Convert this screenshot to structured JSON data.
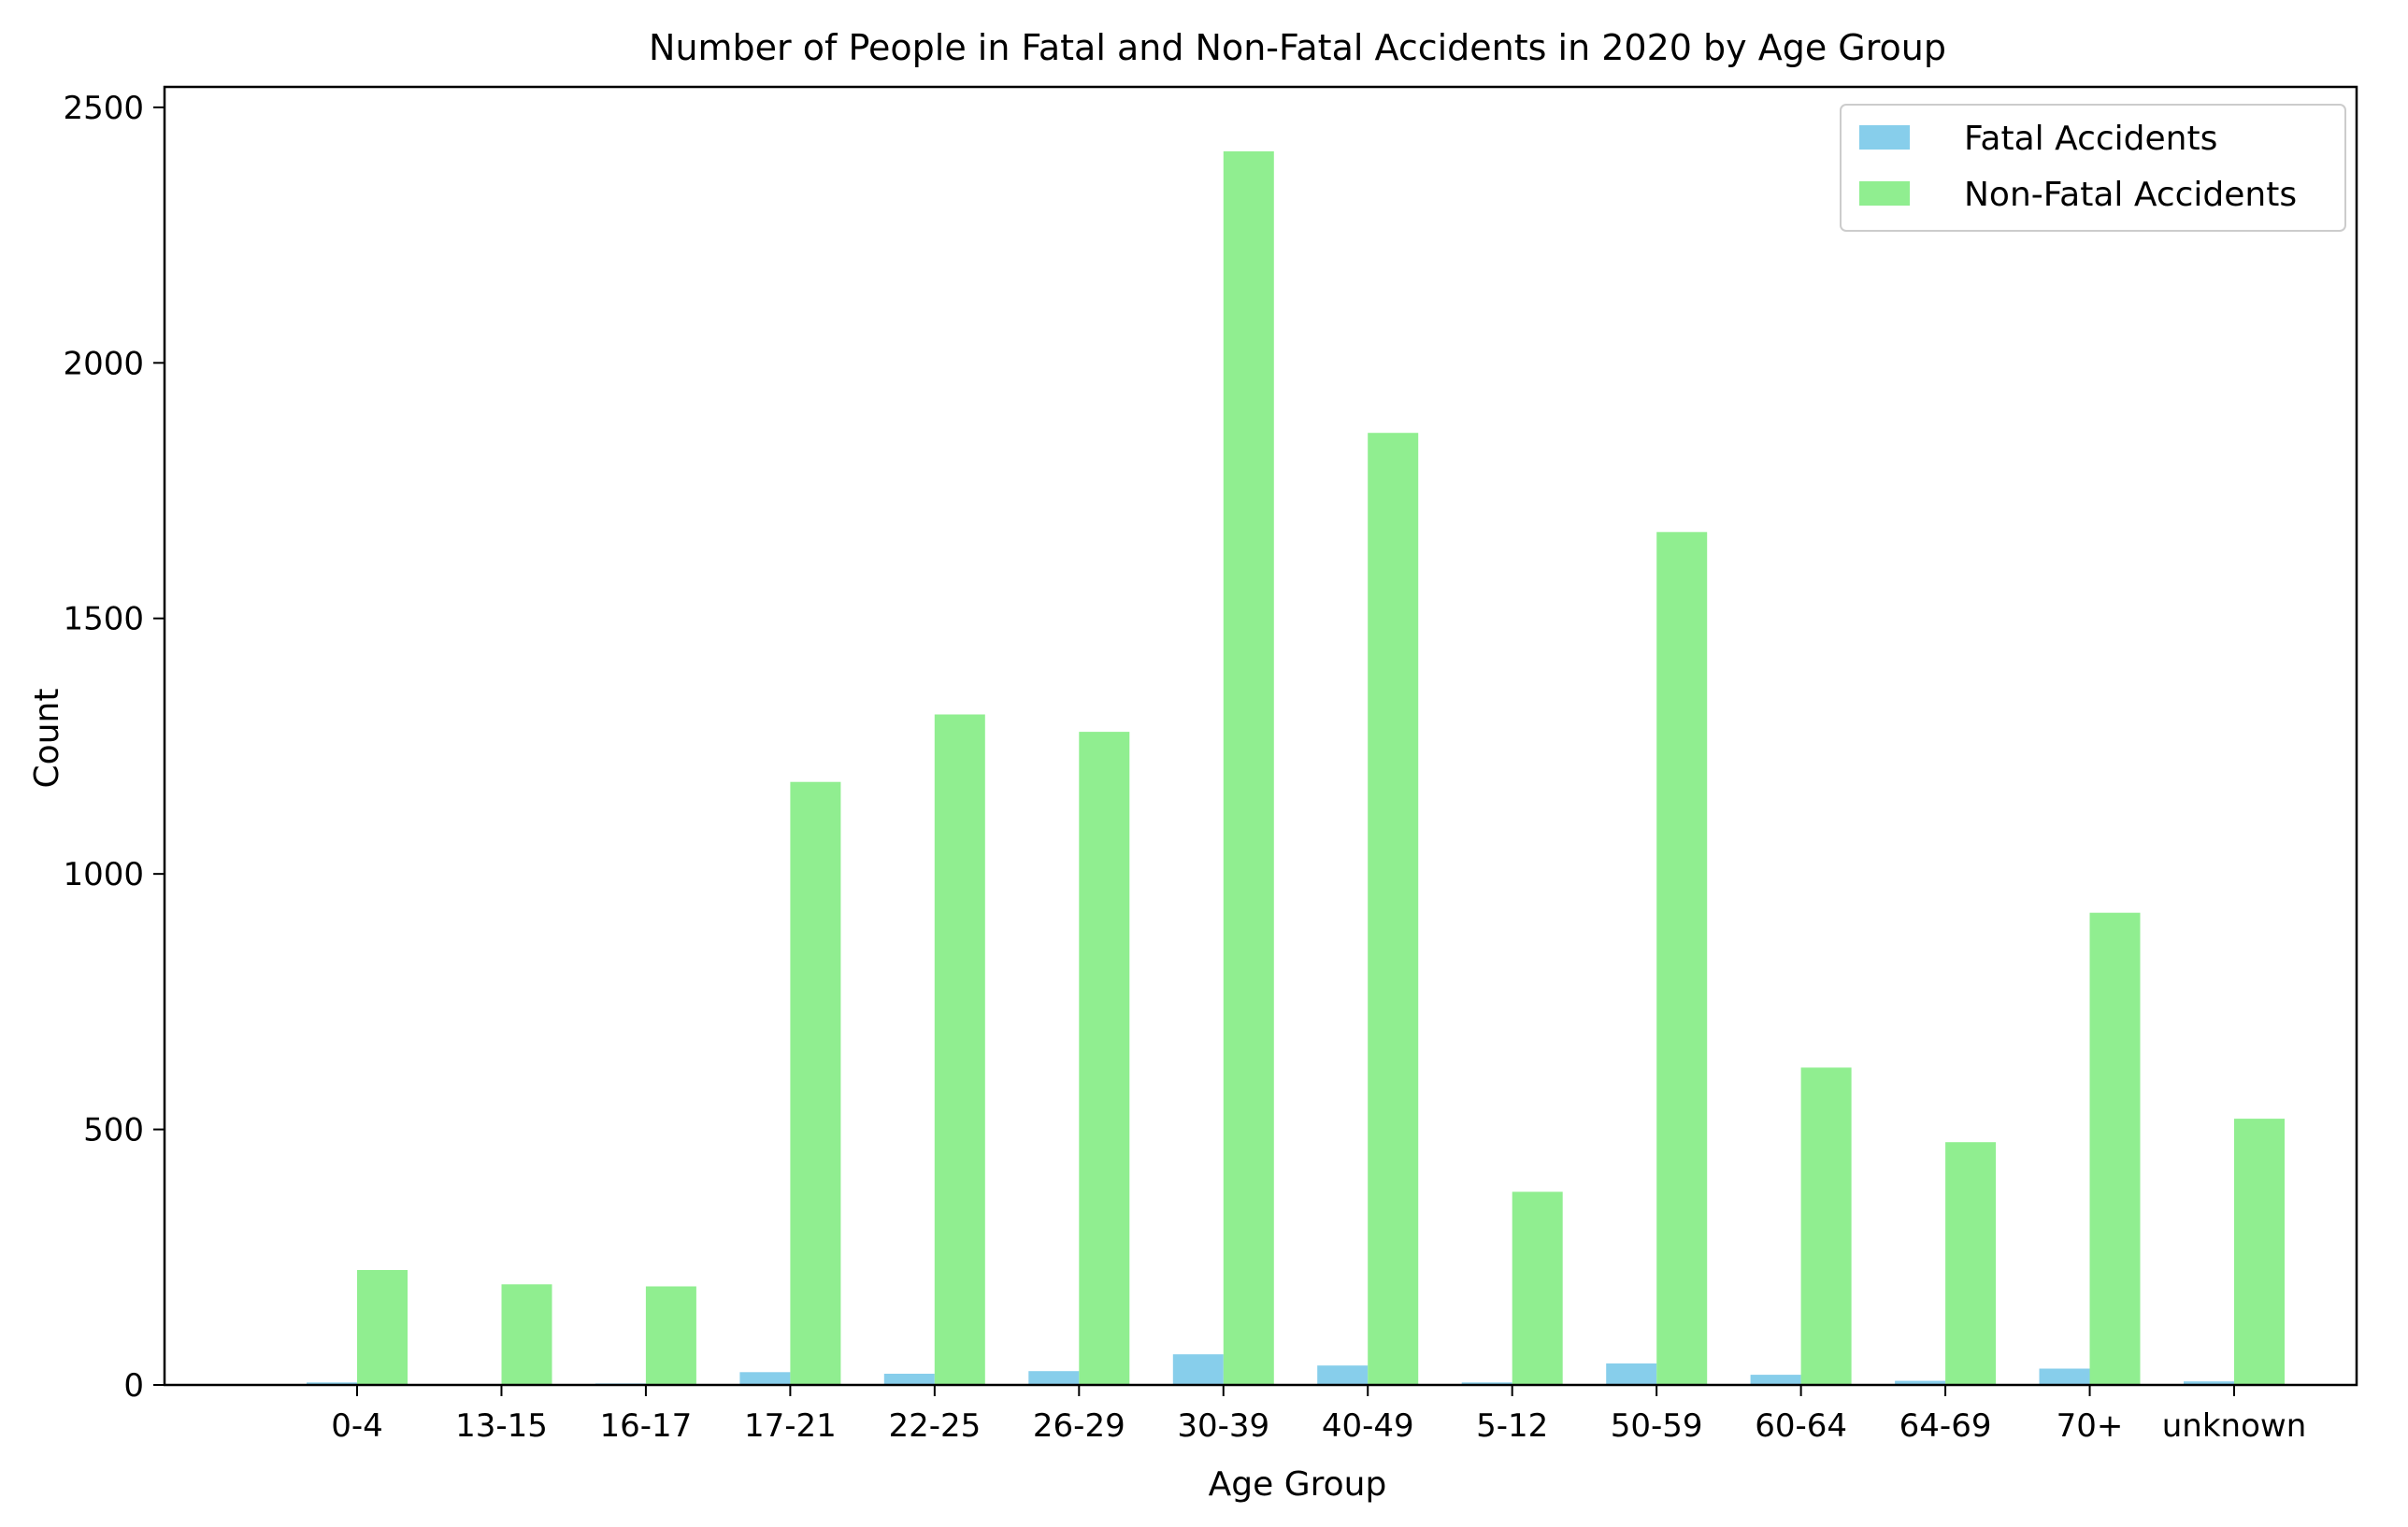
{
  "chart_data": {
    "type": "bar",
    "title": "Number of People in Fatal and Non-Fatal Accidents in 2020 by Age Group",
    "xlabel": "Age Group",
    "ylabel": "Count",
    "ylim": [
      0,
      2540
    ],
    "yticks": [
      0,
      500,
      1000,
      1500,
      2000,
      2500
    ],
    "grid": false,
    "legend_position": "top-right",
    "categories": [
      "0-4",
      "13-15",
      "16-17",
      "17-21",
      "22-25",
      "26-29",
      "30-39",
      "40-49",
      "5-12",
      "50-59",
      "60-64",
      "64-69",
      "70+",
      "unknown"
    ],
    "series": [
      {
        "name": "Fatal Accidents",
        "color": "#87ceeb",
        "values": [
          5,
          1,
          3,
          25,
          22,
          27,
          60,
          38,
          5,
          42,
          20,
          8,
          32,
          7
        ]
      },
      {
        "name": "Non-Fatal Accidents",
        "color": "#90ee90",
        "values": [
          225,
          197,
          193,
          1180,
          1312,
          1278,
          2414,
          1863,
          378,
          1669,
          621,
          475,
          924,
          521
        ]
      }
    ]
  }
}
